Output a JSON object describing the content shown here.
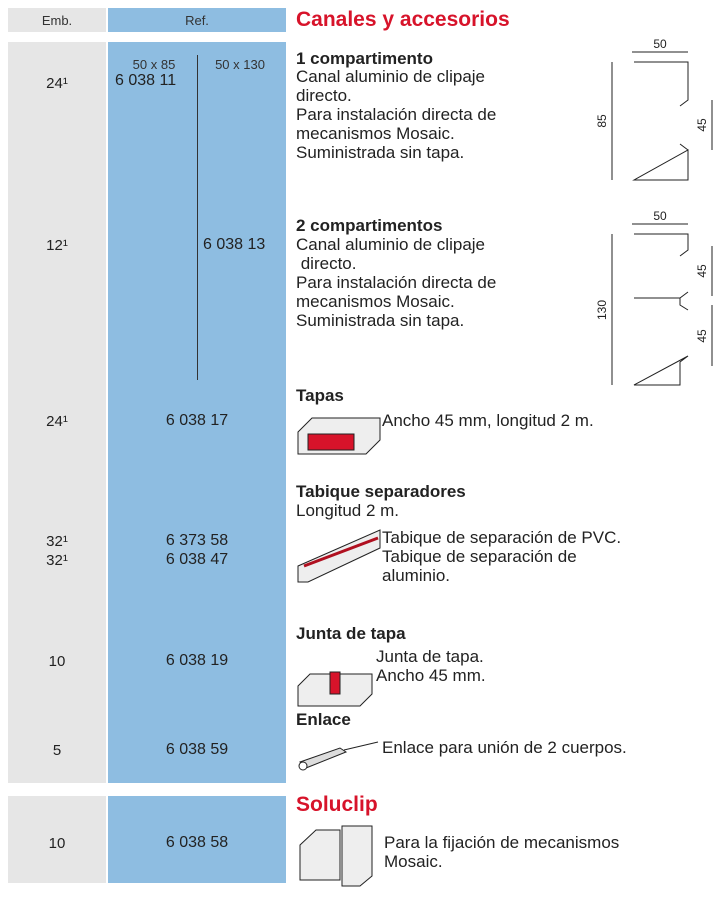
{
  "header": {
    "emb": "Emb.",
    "ref": "Ref.",
    "title": "Canales y accesorios"
  },
  "ref_sizes": [
    "50 x 85",
    "50 x 130"
  ],
  "items": [
    {
      "emb": [
        "24¹"
      ],
      "ref": [
        "6 038 11"
      ],
      "title": "1 compartimento",
      "lines": [
        "Canal aluminio de clipaje",
        "directo.",
        "Para instalación directa de",
        "mecanismos Mosaic.",
        "Suministrada sin tapa."
      ],
      "dims": [
        "50",
        "85",
        "45"
      ]
    },
    {
      "emb": [
        "12¹"
      ],
      "ref": [
        "6 038 13"
      ],
      "title": "2 compartimentos",
      "lines": [
        "Canal aluminio de clipaje",
        " directo.",
        "Para instalación directa de",
        "mecanismos Mosaic.",
        "Suministrada sin tapa."
      ],
      "dims": [
        "50",
        "130",
        "45",
        "45"
      ]
    },
    {
      "emb": [
        "24¹"
      ],
      "ref": [
        "6 038 17"
      ],
      "title": "Tapas",
      "lines": [
        "Ancho 45 mm, longitud 2 m."
      ]
    },
    {
      "emb": [
        "32¹",
        "32¹"
      ],
      "ref": [
        "6 373 58",
        "6 038 47"
      ],
      "title": "Tabique separadores",
      "subtitle": "Longitud 2 m.",
      "lines": [
        "Tabique de separación de PVC.",
        "Tabique de separación de",
        "aluminio."
      ]
    },
    {
      "emb": [
        "10"
      ],
      "ref": [
        "6 038 19"
      ],
      "title": "Junta de tapa",
      "lines": [
        "Junta de tapa.",
        "Ancho 45 mm."
      ]
    },
    {
      "emb": [
        "5"
      ],
      "ref": [
        "6 038 59"
      ],
      "title": "Enlace",
      "lines": [
        "Enlace para unión de 2 cuerpos."
      ]
    }
  ],
  "soluclip": {
    "title": "Soluclip",
    "emb": "10",
    "ref": "6 038 58",
    "lines": [
      "Para la fijación de mecanismos",
      "Mosaic."
    ]
  }
}
